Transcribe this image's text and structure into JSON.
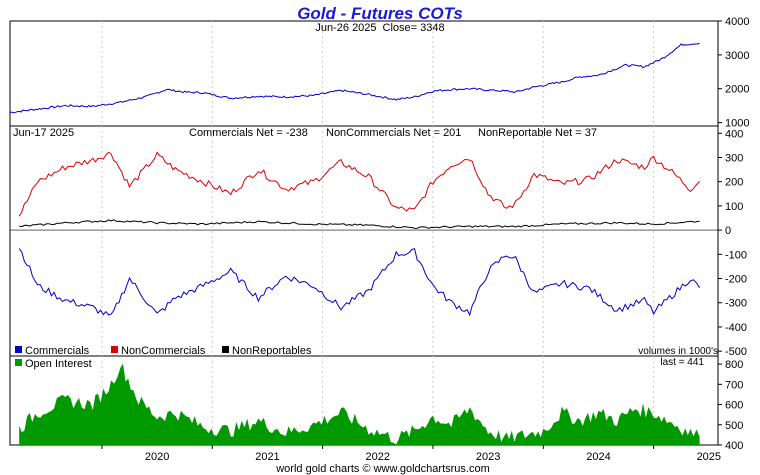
{
  "title": "Gold - Futures COTs",
  "footer": "world gold charts © www.goldchartsrus.com",
  "price_panel": {
    "date": "Jun-26 2025",
    "close_label": "Close= 3348"
  },
  "cot_panel": {
    "date": "Jun-17 2025",
    "commercials_net": "Commercials Net = -238",
    "noncommercials_net": "NonCommercials Net = 201",
    "nonreportable_net": "NonReportable Net = 37"
  },
  "legend": {
    "commercials": "Commercials",
    "noncommercials": "NonCommercials",
    "nonreportables": "NonReportables",
    "units_note": "volumes in 1000's"
  },
  "oi_panel": {
    "label": "Open Interest",
    "last_label": "last = 441"
  },
  "colors": {
    "title": "#1a1ad6",
    "price": "#0000cc",
    "commercials": "#0000cc",
    "noncommercials": "#dd0000",
    "nonreportables": "#000000",
    "open_interest": "#009900"
  },
  "chart_data": [
    {
      "type": "line",
      "panel": "price",
      "series": [
        {
          "x": [
            "2019-03",
            "2019-06",
            "2019-09",
            "2019-12",
            "2020-03",
            "2020-06",
            "2020-08",
            "2020-10",
            "2020-12",
            "2021-03",
            "2021-06",
            "2021-09",
            "2021-12",
            "2022-03",
            "2022-06",
            "2022-09",
            "2022-11",
            "2023-01",
            "2023-03",
            "2023-05",
            "2023-07",
            "2023-09",
            "2023-10",
            "2023-12",
            "2024-03",
            "2024-05",
            "2024-07",
            "2024-10",
            "2024-12",
            "2025-02",
            "2025-04",
            "2025-06"
          ],
          "values": [
            1300,
            1400,
            1500,
            1480,
            1600,
            1780,
            1980,
            1900,
            1880,
            1720,
            1780,
            1760,
            1800,
            1950,
            1830,
            1680,
            1760,
            1930,
            1980,
            2000,
            1960,
            1930,
            1900,
            2050,
            2200,
            2350,
            2400,
            2700,
            2650,
            2900,
            3300,
            3348
          ]
        }
      ],
      "yticks": [
        1000,
        2000,
        3000,
        4000
      ],
      "ylim": [
        900,
        4000
      ]
    },
    {
      "type": "line",
      "panel": "cot",
      "xticks": [
        "2020",
        "2021",
        "2022",
        "2023",
        "2024",
        "2025"
      ],
      "yticks": [
        -500,
        -400,
        -300,
        -200,
        -100,
        0,
        100,
        200,
        300,
        400
      ],
      "ylim": [
        -520,
        430
      ],
      "series": [
        {
          "name": "NonCommercials",
          "x": [
            "2019-04",
            "2019-06",
            "2019-09",
            "2019-12",
            "2020-02",
            "2020-04",
            "2020-07",
            "2020-09",
            "2020-12",
            "2021-03",
            "2021-06",
            "2021-09",
            "2021-12",
            "2022-03",
            "2022-06",
            "2022-09",
            "2022-11",
            "2023-01",
            "2023-03",
            "2023-05",
            "2023-07",
            "2023-09",
            "2023-10",
            "2023-12",
            "2024-03",
            "2024-06",
            "2024-09",
            "2024-12",
            "2025-01",
            "2025-03",
            "2025-05",
            "2025-06"
          ],
          "values": [
            60,
            200,
            260,
            290,
            320,
            180,
            310,
            250,
            200,
            150,
            250,
            170,
            200,
            280,
            220,
            90,
            80,
            200,
            270,
            300,
            150,
            90,
            110,
            230,
            190,
            210,
            290,
            260,
            300,
            240,
            170,
            201
          ]
        },
        {
          "name": "Commercials",
          "x": [
            "2019-04",
            "2019-06",
            "2019-09",
            "2019-12",
            "2020-02",
            "2020-04",
            "2020-07",
            "2020-09",
            "2020-12",
            "2021-03",
            "2021-06",
            "2021-09",
            "2021-12",
            "2022-03",
            "2022-06",
            "2022-09",
            "2022-11",
            "2023-01",
            "2023-03",
            "2023-05",
            "2023-07",
            "2023-09",
            "2023-10",
            "2023-12",
            "2024-03",
            "2024-06",
            "2024-09",
            "2024-12",
            "2025-01",
            "2025-03",
            "2025-05",
            "2025-06"
          ],
          "values": [
            -70,
            -230,
            -290,
            -320,
            -360,
            -200,
            -350,
            -280,
            -230,
            -170,
            -280,
            -190,
            -230,
            -320,
            -250,
            -100,
            -90,
            -230,
            -300,
            -340,
            -170,
            -100,
            -120,
            -260,
            -220,
            -240,
            -330,
            -290,
            -340,
            -270,
            -200,
            -238
          ]
        },
        {
          "name": "NonReportables",
          "x": [
            "2019-04",
            "2019-09",
            "2020-02",
            "2020-07",
            "2020-12",
            "2021-06",
            "2021-12",
            "2022-06",
            "2022-11",
            "2023-05",
            "2023-10",
            "2024-03",
            "2024-09",
            "2025-01",
            "2025-06"
          ],
          "values": [
            15,
            30,
            40,
            30,
            25,
            35,
            25,
            20,
            10,
            15,
            15,
            25,
            30,
            25,
            37
          ]
        }
      ]
    },
    {
      "type": "area",
      "panel": "open_interest",
      "series": [
        {
          "name": "Open Interest",
          "x": [
            "2019-04",
            "2019-06",
            "2019-09",
            "2019-12",
            "2020-02",
            "2020-03",
            "2020-05",
            "2020-07",
            "2020-09",
            "2020-12",
            "2021-03",
            "2021-06",
            "2021-09",
            "2021-12",
            "2022-03",
            "2022-06",
            "2022-09",
            "2022-11",
            "2023-01",
            "2023-03",
            "2023-05",
            "2023-07",
            "2023-09",
            "2023-11",
            "2024-01",
            "2024-03",
            "2024-05",
            "2024-07",
            "2024-09",
            "2024-11",
            "2025-01",
            "2025-03",
            "2025-05",
            "2025-06"
          ],
          "values": [
            480,
            560,
            620,
            600,
            700,
            800,
            620,
            540,
            560,
            490,
            470,
            520,
            460,
            500,
            560,
            480,
            430,
            470,
            540,
            500,
            580,
            470,
            430,
            450,
            470,
            560,
            520,
            560,
            520,
            580,
            560,
            510,
            460,
            441
          ]
        }
      ],
      "yticks": [
        400,
        500,
        600,
        700,
        800
      ],
      "ylim": [
        400,
        840
      ]
    }
  ]
}
